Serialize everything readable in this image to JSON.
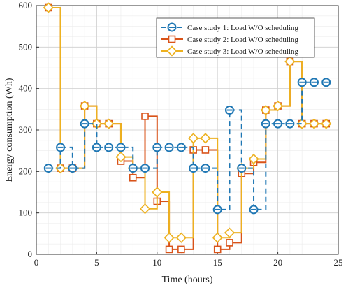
{
  "chart_data": {
    "type": "line",
    "xlabel": "Time (hours)",
    "ylabel": "Energy consumption (Wh)",
    "xlim": [
      0,
      25
    ],
    "ylim": [
      0,
      600
    ],
    "xticks": [
      0,
      5,
      10,
      15,
      20,
      25
    ],
    "yticks": [
      0,
      100,
      200,
      300,
      400,
      500,
      600
    ],
    "xtick_labels": [
      "0",
      "5",
      "10",
      "15",
      "20",
      "25"
    ],
    "ytick_labels": [
      "0",
      "100",
      "200",
      "300",
      "400",
      "500",
      "600"
    ],
    "grid": true,
    "minor_grid": true,
    "legend_position": "top-right",
    "x": [
      1,
      2,
      3,
      4,
      5,
      6,
      7,
      8,
      9,
      10,
      11,
      12,
      13,
      14,
      15,
      16,
      17,
      18,
      19,
      20,
      21,
      22,
      23,
      24
    ],
    "series": [
      {
        "name": "Case study 1: Load W/O scheduling",
        "color": "#1f77b4",
        "line_style": "dashed",
        "marker": "circle-dash",
        "step": true,
        "values": [
          208,
          258,
          208,
          315,
          258,
          258,
          258,
          208,
          208,
          258,
          258,
          258,
          208,
          208,
          108,
          348,
          208,
          108,
          315,
          315,
          315,
          415,
          415,
          415
        ]
      },
      {
        "name": "Case study 2: Load W/O scheduling",
        "color": "#d95319",
        "line_style": "solid",
        "marker": "square",
        "step": true,
        "values": [
          595,
          208,
          208,
          358,
          315,
          315,
          225,
          185,
          333,
          128,
          12,
          12,
          252,
          252,
          12,
          28,
          195,
          222,
          348,
          358,
          465,
          315,
          315,
          315
        ]
      },
      {
        "name": "Case study 3: Load W/O scheduling",
        "color": "#edb120",
        "line_style": "solid",
        "marker": "diamond",
        "step": true,
        "values": [
          595,
          208,
          208,
          358,
          315,
          315,
          235,
          208,
          110,
          150,
          40,
          40,
          280,
          280,
          40,
          52,
          208,
          230,
          348,
          358,
          465,
          315,
          315,
          315
        ]
      }
    ]
  }
}
